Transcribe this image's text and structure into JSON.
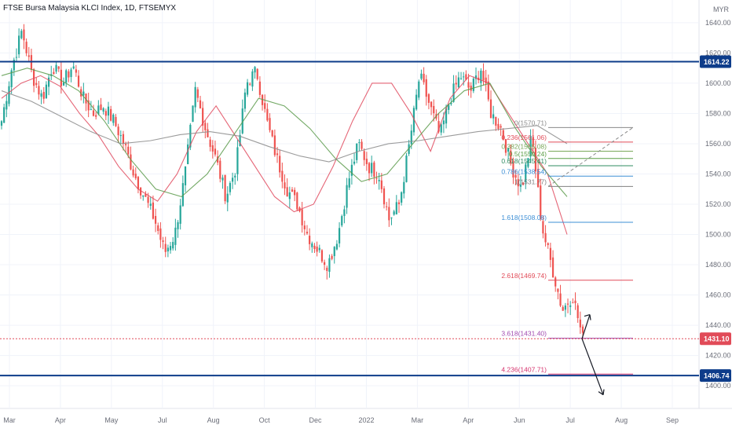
{
  "header": {
    "title": "FTSE Bursa Malaysia KLCI Index, 1D, FTSEMYX",
    "currency": "MYR"
  },
  "chart_data": {
    "type": "candlestick",
    "title": "FTSE Bursa Malaysia KLCI Index, 1D, FTSEMYX",
    "ylabel": "MYR",
    "ylim": [
      1385,
      1655
    ],
    "yticks": [
      1400,
      1420,
      1440,
      1460,
      1480,
      1500,
      1520,
      1540,
      1560,
      1580,
      1600,
      1620,
      1640
    ],
    "xtick_labels": [
      "Mar",
      "Apr",
      "May",
      "Jul",
      "Aug",
      "Oct",
      "Dec",
      "2022",
      "Mar",
      "Apr",
      "Jun",
      "Jul",
      "Aug",
      "Sep"
    ],
    "grid": true,
    "price_path": [
      [
        "Mar",
        1575
      ],
      [
        "Mar",
        1610
      ],
      [
        "Mar",
        1635
      ],
      [
        "Mar",
        1605
      ],
      [
        "Apr",
        1590
      ],
      [
        "Apr",
        1612
      ],
      [
        "Apr",
        1600
      ],
      [
        "May",
        1612
      ],
      [
        "May",
        1590
      ],
      [
        "May",
        1580
      ],
      [
        "May",
        1585
      ],
      [
        "May",
        1575
      ],
      [
        "May",
        1560
      ],
      [
        "May",
        1540
      ],
      [
        "Jul",
        1525
      ],
      [
        "Jul",
        1510
      ],
      [
        "Aug",
        1488
      ],
      [
        "Aug",
        1500
      ],
      [
        "Aug",
        1540
      ],
      [
        "Aug",
        1595
      ],
      [
        "Aug",
        1570
      ],
      [
        "Aug",
        1550
      ],
      [
        "Aug",
        1525
      ],
      [
        "Oct",
        1545
      ],
      [
        "Oct",
        1600
      ],
      [
        "Oct",
        1608
      ],
      [
        "Oct",
        1575
      ],
      [
        "Oct",
        1550
      ],
      [
        "Oct",
        1530
      ],
      [
        "Oct",
        1520
      ],
      [
        "Dec",
        1500
      ],
      [
        "Dec",
        1490
      ],
      [
        "Dec",
        1480
      ],
      [
        "Dec",
        1500
      ],
      [
        "2022",
        1535
      ],
      [
        "2022",
        1560
      ],
      [
        "2022",
        1545
      ],
      [
        "2022",
        1540
      ],
      [
        "2022",
        1510
      ],
      [
        "2022",
        1520
      ],
      [
        "Mar",
        1560
      ],
      [
        "Mar",
        1605
      ],
      [
        "Mar",
        1585
      ],
      [
        "Mar",
        1565
      ],
      [
        "Apr",
        1590
      ],
      [
        "Apr",
        1605
      ],
      [
        "Apr",
        1595
      ],
      [
        "Apr",
        1610
      ],
      [
        "Jun",
        1580
      ],
      [
        "Jun",
        1570
      ],
      [
        "Jun",
        1545
      ],
      [
        "Jun",
        1530
      ],
      [
        "Jun",
        1565
      ],
      [
        "Jun",
        1505
      ],
      [
        "Jun",
        1478
      ],
      [
        "Jun",
        1450
      ],
      [
        "Jun",
        1460
      ],
      [
        "Jun",
        1431
      ]
    ],
    "series": [
      {
        "name": "",
        "color": "#e04a5e",
        "values": [
          1590,
          1600,
          1605,
          1598,
          1580,
          1565,
          1545,
          1530,
          1522,
          1540,
          1568,
          1585,
          1565,
          1545,
          1525,
          1515,
          1520,
          1545,
          1575,
          1600,
          1600,
          1580,
          1555,
          1590,
          1605,
          1600,
          1580,
          1560,
          1540,
          1500
        ]
      },
      {
        "name": "",
        "color": "#5b9a4a",
        "values": [
          1605,
          1610,
          1605,
          1595,
          1575,
          1550,
          1530,
          1525,
          1540,
          1565,
          1590,
          1585,
          1570,
          1550,
          1535,
          1540,
          1560,
          1580,
          1595,
          1600,
          1570,
          1545,
          1525
        ]
      },
      {
        "name": "",
        "color": "#8a8a8a",
        "values": [
          1595,
          1588,
          1578,
          1568,
          1560,
          1562,
          1566,
          1568,
          1565,
          1558,
          1552,
          1548,
          1555,
          1560,
          1562,
          1565,
          1568,
          1570,
          1572,
          1560
        ]
      }
    ],
    "horizontal_levels": [
      {
        "value": 1614.22,
        "label": "1614.22",
        "color": "#0d3c8a"
      },
      {
        "value": 1406.74,
        "label": "1406.74",
        "color": "#0d3c8a"
      },
      {
        "value": 1431.1,
        "label": "1431.10",
        "color": "#e14b58",
        "style": "dotted"
      }
    ],
    "fibonacci": [
      {
        "label": "0(1570.71)",
        "value": 1570.71,
        "color": "#8a8a8a"
      },
      {
        "label": "0.236(1561.06)",
        "value": 1561.06,
        "color": "#e14b58"
      },
      {
        "label": "0.382(1555.08)",
        "value": 1555.08,
        "color": "#7aa85a"
      },
      {
        "label": "0.5(1550.24)",
        "value": 1550.24,
        "color": "#5a9e46"
      },
      {
        "label": "0.618(1545.41)",
        "value": 1545.41,
        "color": "#2f8c62"
      },
      {
        "label": "0.786(1538.54)",
        "value": 1538.54,
        "color": "#3d8fd6"
      },
      {
        "label": "1(1531.77)",
        "value": 1531.77,
        "color": "#808080"
      },
      {
        "label": "1.618(1508.08)",
        "value": 1508.08,
        "color": "#3d8fd6"
      },
      {
        "label": "2.618(1469.74)",
        "value": 1469.74,
        "color": "#e14b58"
      },
      {
        "label": "3.618(1431.40)",
        "value": 1431.4,
        "color": "#a14bb0"
      },
      {
        "label": "4.236(1407.71)",
        "value": 1407.71,
        "color": "#d6356f"
      }
    ]
  }
}
